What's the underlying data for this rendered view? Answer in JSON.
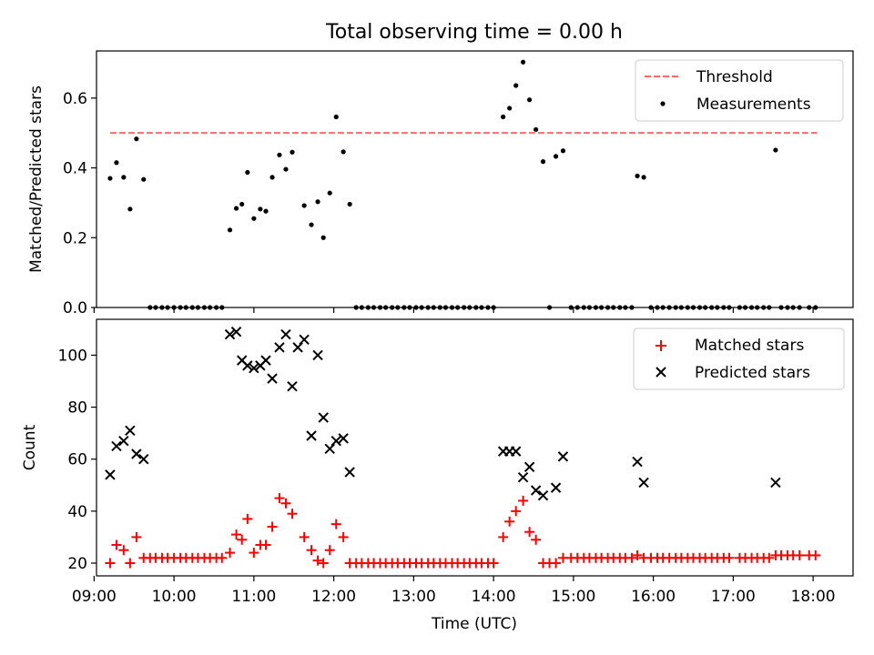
{
  "figure": {
    "title": "Total observing time = 0.00 h"
  },
  "colors": {
    "threshold": "#ff6b6b",
    "measurements": "#000000",
    "matched": "#ff0000",
    "predicted": "#000000",
    "axes": "#000000",
    "background": "#ffffff"
  },
  "chart_data": [
    {
      "type": "scatter",
      "panel": "top",
      "title": "Total observing time = 0.00 h",
      "xlabel": "",
      "ylabel": "Matched/Predicted stars",
      "xlim": [
        9.03,
        18.5
      ],
      "ylim": [
        0,
        0.735
      ],
      "y_ticks": [
        0.0,
        0.2,
        0.4,
        0.6
      ],
      "y_tick_labels": [
        "0.0",
        "0.2",
        "0.4",
        "0.6"
      ],
      "legend": {
        "position": "upper right",
        "entries": [
          "Threshold",
          "Measurements"
        ]
      },
      "series": [
        {
          "name": "Threshold",
          "kind": "dashed-line",
          "x": [
            9.2,
            18.05
          ],
          "y": [
            0.5,
            0.5
          ]
        },
        {
          "name": "Measurements",
          "kind": "dots",
          "x": [
            9.2,
            9.28,
            9.37,
            9.45,
            9.53,
            9.62,
            9.7,
            9.77,
            9.85,
            9.92,
            10.0,
            10.08,
            10.15,
            10.23,
            10.3,
            10.38,
            10.45,
            10.53,
            10.6,
            10.7,
            10.78,
            10.85,
            10.92,
            11.0,
            11.08,
            11.15,
            11.23,
            11.32,
            11.4,
            11.48,
            11.63,
            11.72,
            11.8,
            11.87,
            11.95,
            12.03,
            12.12,
            12.2,
            12.28,
            12.35,
            12.43,
            12.5,
            12.58,
            12.65,
            12.73,
            12.8,
            12.88,
            12.95,
            13.03,
            13.1,
            13.18,
            13.25,
            13.33,
            13.4,
            13.48,
            13.55,
            13.63,
            13.7,
            13.78,
            13.85,
            13.93,
            14.0,
            14.12,
            14.2,
            14.28,
            14.37,
            14.45,
            14.53,
            14.62,
            14.7,
            14.78,
            14.87,
            14.97,
            15.05,
            15.13,
            15.2,
            15.28,
            15.35,
            15.43,
            15.5,
            15.58,
            15.65,
            15.73,
            15.8,
            15.88,
            15.97,
            16.05,
            16.12,
            16.2,
            16.28,
            16.35,
            16.43,
            16.5,
            16.58,
            16.65,
            16.73,
            16.8,
            16.88,
            16.95,
            17.08,
            17.15,
            17.23,
            17.3,
            17.38,
            17.45,
            17.53,
            17.6,
            17.68,
            17.75,
            17.83,
            17.95,
            18.03
          ],
          "y": [
            0.37,
            0.415,
            0.373,
            0.282,
            0.483,
            0.367,
            0.0,
            0.0,
            0.0,
            0.0,
            0.0,
            0.0,
            0.0,
            0.0,
            0.0,
            0.0,
            0.0,
            0.0,
            0.0,
            0.222,
            0.284,
            0.296,
            0.387,
            0.255,
            0.282,
            0.276,
            0.373,
            0.437,
            0.396,
            0.445,
            0.292,
            0.237,
            0.303,
            0.2,
            0.328,
            0.546,
            0.446,
            0.296,
            0.0,
            0.0,
            0.0,
            0.0,
            0.0,
            0.0,
            0.0,
            0.0,
            0.0,
            0.0,
            0.0,
            0.0,
            0.0,
            0.0,
            0.0,
            0.0,
            0.0,
            0.0,
            0.0,
            0.0,
            0.0,
            0.0,
            0.0,
            0.0,
            0.546,
            0.571,
            0.636,
            0.703,
            0.595,
            0.51,
            0.418,
            0.0,
            0.433,
            0.449,
            0.0,
            0.0,
            0.0,
            0.0,
            0.0,
            0.0,
            0.0,
            0.0,
            0.0,
            0.0,
            0.0,
            0.377,
            0.373,
            0.0,
            0.0,
            0.0,
            0.0,
            0.0,
            0.0,
            0.0,
            0.0,
            0.0,
            0.0,
            0.0,
            0.0,
            0.0,
            0.0,
            0.0,
            0.0,
            0.0,
            0.0,
            0.0,
            0.0,
            0.451,
            0.0,
            0.0,
            0.0,
            0.0,
            0.0,
            0.0
          ]
        }
      ]
    },
    {
      "type": "scatter",
      "panel": "bottom",
      "title": "",
      "xlabel": "Time (UTC)",
      "ylabel": "Count",
      "xlim": [
        9.03,
        18.5
      ],
      "ylim": [
        15.1,
        113.8
      ],
      "x_ticks": [
        9,
        10,
        11,
        12,
        13,
        14,
        15,
        16,
        17,
        18
      ],
      "x_tick_labels": [
        "09:00",
        "10:00",
        "11:00",
        "12:00",
        "13:00",
        "14:00",
        "15:00",
        "16:00",
        "17:00",
        "18:00"
      ],
      "y_ticks": [
        20,
        40,
        60,
        80,
        100
      ],
      "y_tick_labels": [
        "20",
        "40",
        "60",
        "80",
        "100"
      ],
      "legend": {
        "position": "upper right",
        "entries": [
          "Matched stars",
          "Predicted stars"
        ]
      },
      "series": [
        {
          "name": "Matched stars",
          "marker": "plus",
          "x": [
            9.2,
            9.28,
            9.37,
            9.45,
            9.53,
            9.62,
            9.7,
            9.77,
            9.85,
            9.92,
            10.0,
            10.08,
            10.15,
            10.23,
            10.3,
            10.38,
            10.45,
            10.53,
            10.6,
            10.7,
            10.78,
            10.85,
            10.92,
            11.0,
            11.08,
            11.15,
            11.23,
            11.32,
            11.4,
            11.48,
            11.63,
            11.72,
            11.8,
            11.87,
            11.95,
            12.03,
            12.12,
            12.2,
            12.28,
            12.35,
            12.43,
            12.5,
            12.58,
            12.65,
            12.73,
            12.8,
            12.88,
            12.95,
            13.03,
            13.1,
            13.18,
            13.25,
            13.33,
            13.4,
            13.48,
            13.55,
            13.63,
            13.7,
            13.78,
            13.85,
            13.93,
            14.0,
            14.12,
            14.2,
            14.28,
            14.37,
            14.45,
            14.53,
            14.62,
            14.7,
            14.78,
            14.87,
            14.97,
            15.05,
            15.13,
            15.2,
            15.28,
            15.35,
            15.43,
            15.5,
            15.58,
            15.65,
            15.73,
            15.8,
            15.88,
            15.97,
            16.05,
            16.12,
            16.2,
            16.28,
            16.35,
            16.43,
            16.5,
            16.58,
            16.65,
            16.73,
            16.8,
            16.88,
            16.95,
            17.08,
            17.15,
            17.23,
            17.3,
            17.38,
            17.45,
            17.53,
            17.6,
            17.68,
            17.75,
            17.83,
            17.95,
            18.03
          ],
          "y": [
            20,
            27,
            25,
            20,
            30,
            22,
            22,
            22,
            22,
            22,
            22,
            22,
            22,
            22,
            22,
            22,
            22,
            22,
            22,
            24,
            31,
            29,
            37,
            24,
            27,
            27,
            34,
            45,
            43,
            39,
            30,
            25,
            21,
            20,
            25,
            35,
            30,
            20,
            20,
            20,
            20,
            20,
            20,
            20,
            20,
            20,
            20,
            20,
            20,
            20,
            20,
            20,
            20,
            20,
            20,
            20,
            20,
            20,
            20,
            20,
            20,
            20,
            30,
            36,
            40,
            44,
            32,
            29,
            20,
            20,
            20,
            22,
            22,
            22,
            22,
            22,
            22,
            22,
            22,
            22,
            22,
            22,
            22,
            23,
            22,
            22,
            22,
            22,
            22,
            22,
            22,
            22,
            22,
            22,
            22,
            22,
            22,
            22,
            22,
            22,
            22,
            22,
            22,
            22,
            22,
            23,
            23,
            23,
            23,
            23,
            23,
            23
          ]
        },
        {
          "name": "Predicted stars",
          "marker": "x",
          "x": [
            9.2,
            9.28,
            9.37,
            9.45,
            9.53,
            9.62,
            10.7,
            10.78,
            10.85,
            10.92,
            11.0,
            11.08,
            11.15,
            11.23,
            11.32,
            11.4,
            11.48,
            11.55,
            11.63,
            11.72,
            11.8,
            11.87,
            11.95,
            12.03,
            12.12,
            12.2,
            14.12,
            14.2,
            14.28,
            14.37,
            14.45,
            14.53,
            14.62,
            14.78,
            14.87,
            15.8,
            15.88,
            17.53
          ],
          "y": [
            54,
            65,
            67,
            71,
            62,
            60,
            108,
            109,
            98,
            96,
            95,
            96,
            98,
            91,
            103,
            108,
            88,
            103,
            106,
            69,
            100,
            76,
            64,
            67,
            68,
            55,
            63,
            63,
            63,
            53,
            57,
            48,
            46,
            49,
            61,
            59,
            51,
            51
          ]
        }
      ]
    }
  ]
}
